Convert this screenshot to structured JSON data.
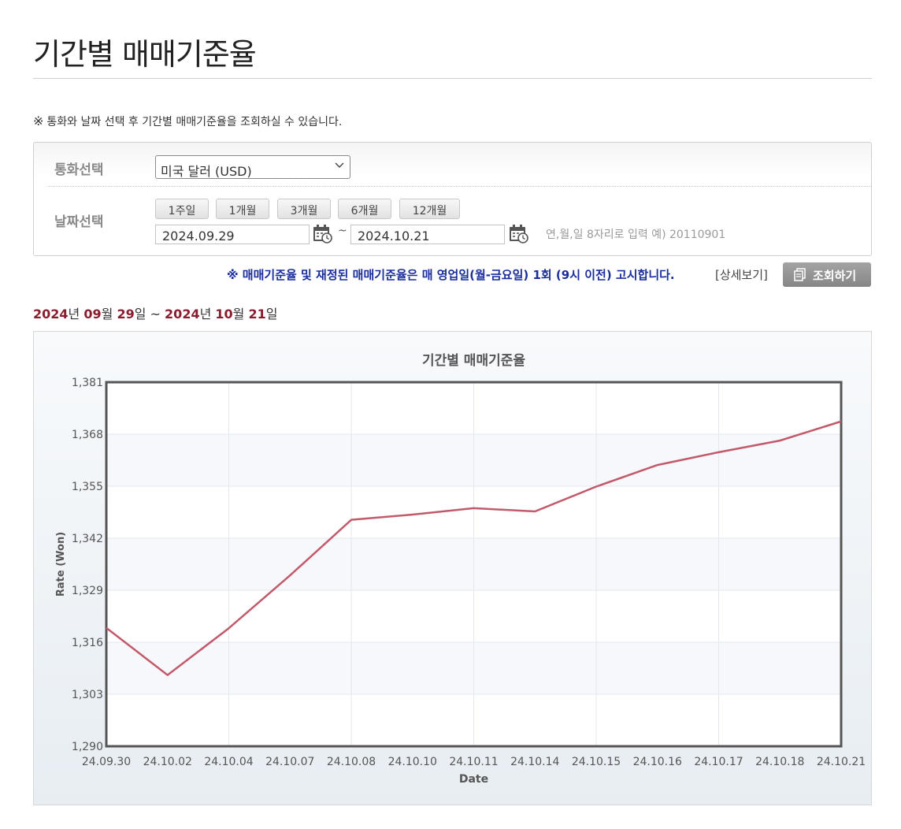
{
  "page": {
    "title": "기간별 매매기준율"
  },
  "notice": {
    "mark": "※",
    "text": "통화와 날짜 선택 후 기간별 매매기준율을 조회하실 수 있습니다."
  },
  "search": {
    "currency_label": "통화선택",
    "currency_value": "미국 달러 (USD)",
    "date_label": "날짜선택",
    "periods": [
      "1주일",
      "1개월",
      "3개월",
      "6개월",
      "12개월"
    ],
    "start_date": "2024.09.29",
    "separator": "~",
    "end_date": "2024.10.21",
    "hint": "연,월,일 8자리로 입력 예) 20110901"
  },
  "announcement": {
    "text": "※ 매매기준율 및 재정된 매매기준율은 매 영업일(월-금요일) 1회 (9시 이전) 고시합니다.",
    "detail_link": "[상세보기]",
    "query_button": "조회하기"
  },
  "range": {
    "start_year": "2024",
    "start_month": "09",
    "start_day": "29",
    "sep": "~",
    "end_year": "2024",
    "end_month": "10",
    "end_day": "21",
    "u_year": "년",
    "u_month": "월",
    "u_day": "일"
  },
  "chart_data": {
    "type": "line",
    "title": "기간별 매매기준율",
    "xlabel": "Date",
    "ylabel": "Rate (Won)",
    "ylim": [
      1290,
      1381
    ],
    "yticks": [
      "1,290",
      "1,303",
      "1,316",
      "1,329",
      "1,342",
      "1,355",
      "1,368",
      "1,381"
    ],
    "yticks_values": [
      1290,
      1303,
      1316,
      1329,
      1342,
      1355,
      1368,
      1381
    ],
    "categories": [
      "24.09.30",
      "24.10.02",
      "24.10.04",
      "24.10.07",
      "24.10.08",
      "24.10.10",
      "24.10.11",
      "24.10.14",
      "24.10.15",
      "24.10.16",
      "24.10.17",
      "24.10.18",
      "24.10.21"
    ],
    "series": [
      {
        "values": [
          1319.6,
          1307.8,
          1319.5,
          1332.7,
          1346.6,
          1347.9,
          1349.5,
          1348.7,
          1354.9,
          1360.3,
          1363.5,
          1366.4,
          1371.2
        ]
      }
    ],
    "grid": true,
    "colors": {
      "line": "#c25a6b",
      "frame": "#555555",
      "grid": "#e3e8ee"
    }
  }
}
